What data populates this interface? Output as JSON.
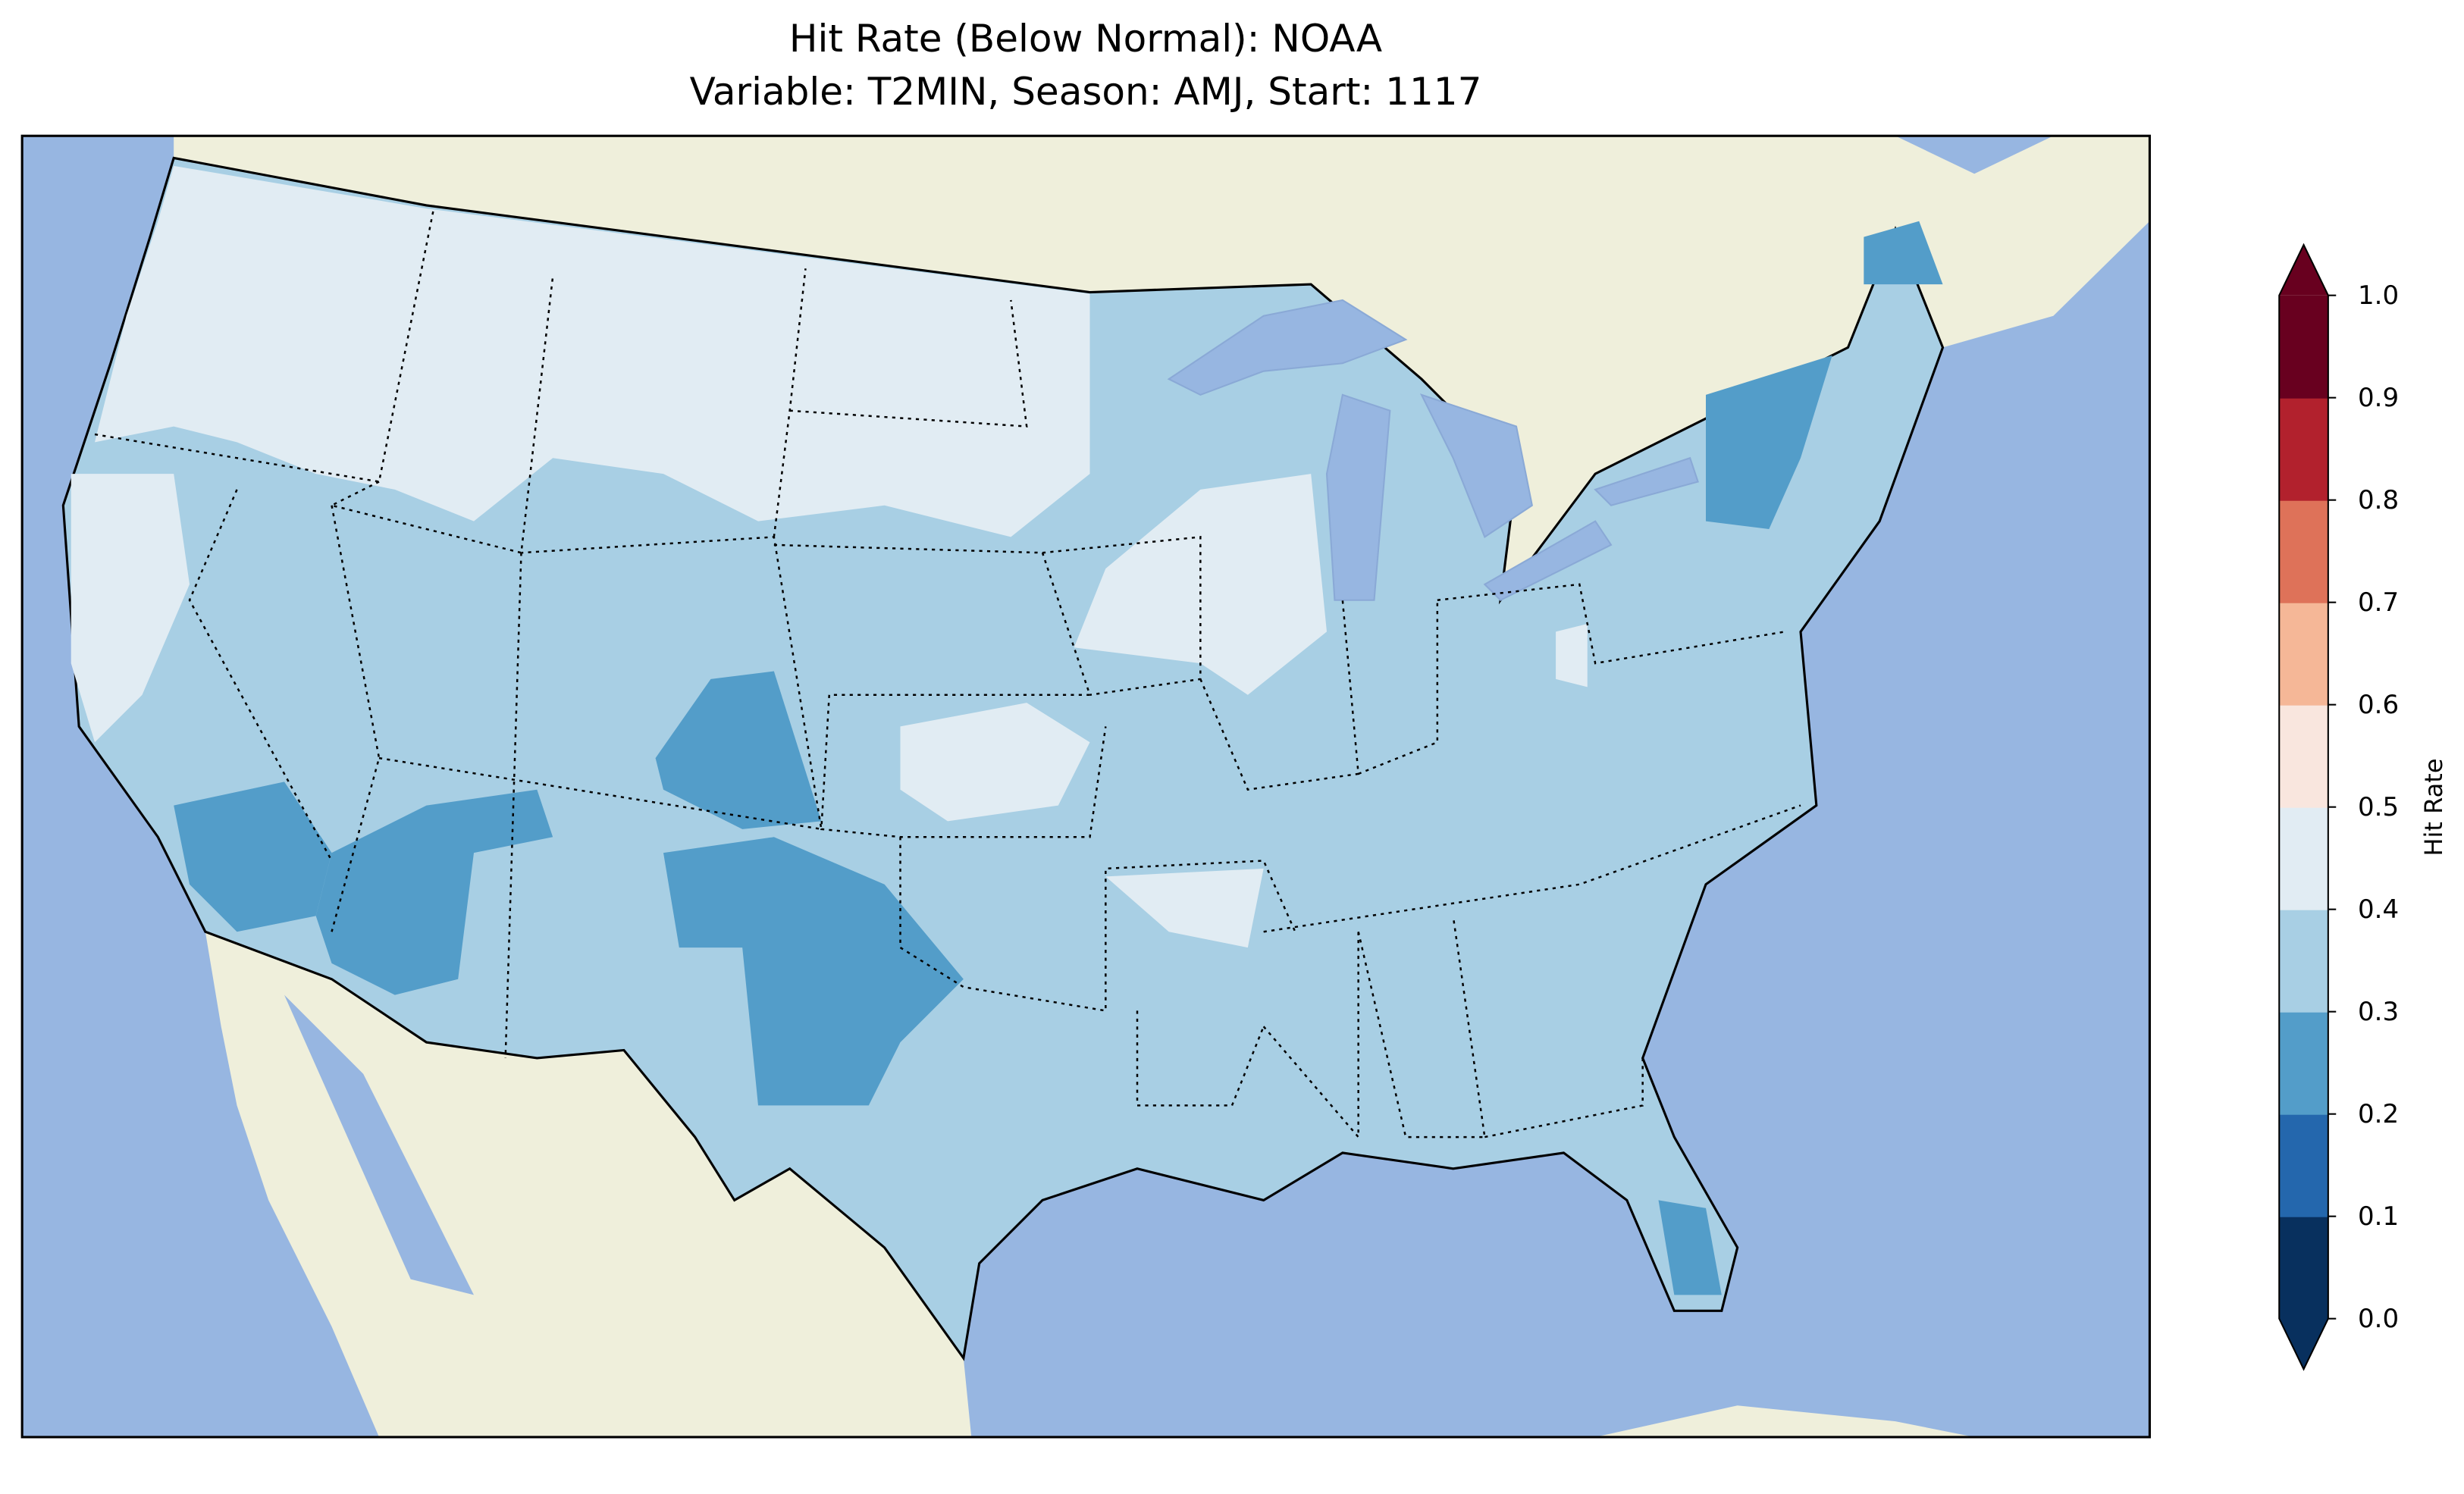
{
  "title": {
    "line1": "Hit Rate (Below Normal): NOAA",
    "line2": "Variable: T2MIN, Season: AMJ, Start: 1117"
  },
  "colors": {
    "ocean": "#97b6e1",
    "land": "#efefdb",
    "lakes": "#97b6e1"
  },
  "chart_data": {
    "type": "heatmap",
    "title": "Hit Rate (Below Normal): NOAA\nVariable: T2MIN, Season: AMJ, Start: 1117",
    "colorbar": {
      "label": "Hit Rate",
      "ticks": [
        "0.0",
        "0.1",
        "0.2",
        "0.3",
        "0.4",
        "0.5",
        "0.6",
        "0.7",
        "0.8",
        "0.9",
        "1.0"
      ],
      "range": [
        0.0,
        1.0
      ],
      "extend": "both",
      "colors": [
        "#08305e",
        "#2467ad",
        "#539dc9",
        "#a8cfe4",
        "#e1ecf3",
        "#f9e6de",
        "#f5b797",
        "#de7259",
        "#b2212d",
        "#68001f"
      ]
    },
    "regions": [
      {
        "name": "Most of CONUS",
        "range": "0.3-0.4"
      },
      {
        "name": "Northern tier / Pacific NW / Kansas / Upper Midwest",
        "range": "0.4-0.5"
      },
      {
        "name": "Southern California / Arizona / Colorado / New Mexico / West Texas / New York / Maine / South Florida",
        "range": "0.2-0.3"
      }
    ]
  }
}
